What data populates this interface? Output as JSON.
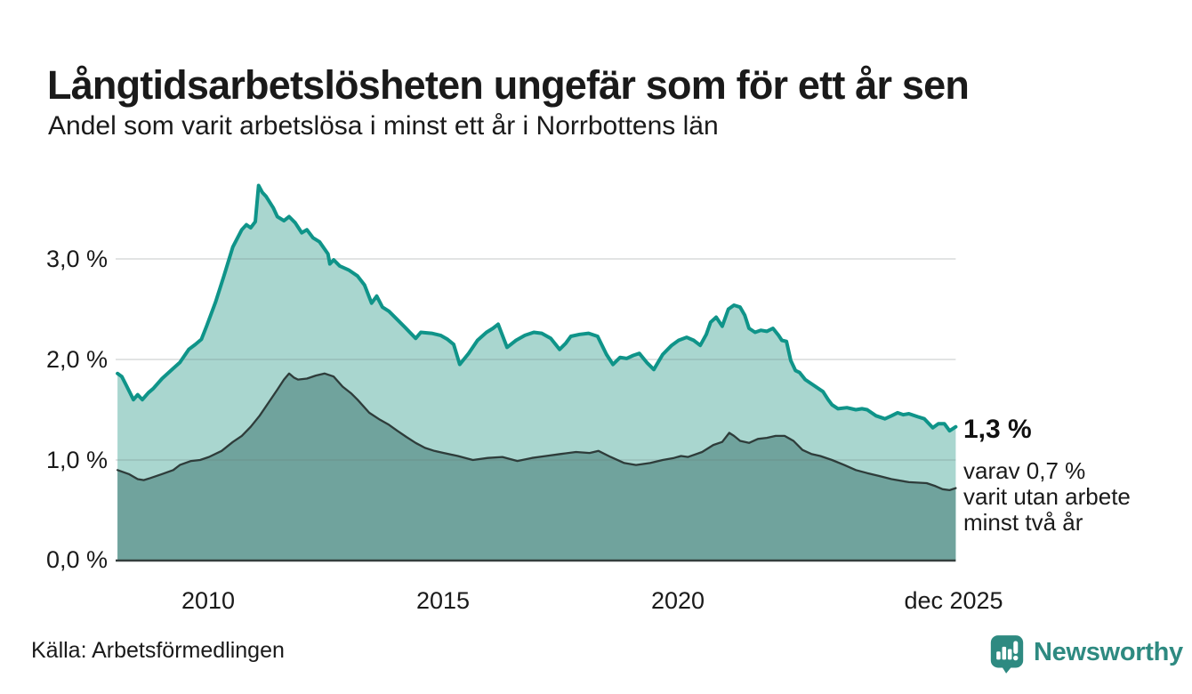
{
  "header": {
    "title": "Långtidsarbetslösheten ungefär som för ett år sen",
    "subtitle": "Andel som varit arbetslösa i minst ett år i Norrbottens län"
  },
  "chart_data": {
    "type": "area",
    "title": "Långtidsarbetslösheten ungefär som för ett år sen",
    "subtitle": "Andel som varit arbetslösa i minst ett år i Norrbottens län",
    "unit": "%",
    "x_axis": {
      "range_years": [
        2008,
        2025.92
      ],
      "ticks": [
        {
          "label": "2010",
          "year": 2010
        },
        {
          "label": "2015",
          "year": 2015
        },
        {
          "label": "2020",
          "year": 2020
        },
        {
          "label": "dec 2025",
          "year": 2025.92
        }
      ]
    },
    "y_axis": {
      "ylim": [
        0,
        3.85
      ],
      "gridline_values": [
        1,
        2,
        3
      ],
      "ticks": [
        {
          "label": "0,0 %",
          "value": 0
        },
        {
          "label": "1,0 %",
          "value": 1
        },
        {
          "label": "2,0 %",
          "value": 2
        },
        {
          "label": "3,0 %",
          "value": 3
        }
      ]
    },
    "colors": {
      "line_one_year": "#0f9489",
      "fill_one_year": "#a9d6cf",
      "line_two_years": "#2e3c3a",
      "fill_two_years": "#70a39d",
      "gridline": "rgba(104,115,114,0.25)",
      "baseline": "#343e3d"
    },
    "series": [
      {
        "name": "Arbetslösa minst ett år",
        "last_value_label": "1,3 %",
        "points": [
          [
            2008.04,
            1.86
          ],
          [
            2008.13,
            1.83
          ],
          [
            2008.23,
            1.74
          ],
          [
            2008.38,
            1.6
          ],
          [
            2008.47,
            1.65
          ],
          [
            2008.57,
            1.6
          ],
          [
            2008.7,
            1.67
          ],
          [
            2008.8,
            1.71
          ],
          [
            2008.99,
            1.81
          ],
          [
            2009.18,
            1.89
          ],
          [
            2009.37,
            1.97
          ],
          [
            2009.56,
            2.1
          ],
          [
            2009.7,
            2.15
          ],
          [
            2009.83,
            2.2
          ],
          [
            2009.94,
            2.33
          ],
          [
            2010.13,
            2.57
          ],
          [
            2010.31,
            2.83
          ],
          [
            2010.5,
            3.12
          ],
          [
            2010.69,
            3.29
          ],
          [
            2010.79,
            3.34
          ],
          [
            2010.88,
            3.31
          ],
          [
            2010.98,
            3.37
          ],
          [
            2011.05,
            3.73
          ],
          [
            2011.13,
            3.66
          ],
          [
            2011.21,
            3.62
          ],
          [
            2011.36,
            3.51
          ],
          [
            2011.45,
            3.42
          ],
          [
            2011.59,
            3.38
          ],
          [
            2011.7,
            3.42
          ],
          [
            2011.83,
            3.36
          ],
          [
            2011.97,
            3.26
          ],
          [
            2012.08,
            3.29
          ],
          [
            2012.21,
            3.21
          ],
          [
            2012.35,
            3.17
          ],
          [
            2012.53,
            3.05
          ],
          [
            2012.57,
            2.95
          ],
          [
            2012.65,
            2.99
          ],
          [
            2012.78,
            2.93
          ],
          [
            2012.97,
            2.89
          ],
          [
            2013.16,
            2.83
          ],
          [
            2013.31,
            2.74
          ],
          [
            2013.46,
            2.56
          ],
          [
            2013.57,
            2.63
          ],
          [
            2013.69,
            2.52
          ],
          [
            2013.83,
            2.48
          ],
          [
            2013.98,
            2.41
          ],
          [
            2014.17,
            2.32
          ],
          [
            2014.4,
            2.21
          ],
          [
            2014.51,
            2.27
          ],
          [
            2014.74,
            2.26
          ],
          [
            2014.93,
            2.24
          ],
          [
            2015.08,
            2.2
          ],
          [
            2015.21,
            2.15
          ],
          [
            2015.34,
            1.95
          ],
          [
            2015.53,
            2.06
          ],
          [
            2015.72,
            2.19
          ],
          [
            2015.91,
            2.27
          ],
          [
            2016.05,
            2.31
          ],
          [
            2016.16,
            2.35
          ],
          [
            2016.35,
            2.12
          ],
          [
            2016.54,
            2.19
          ],
          [
            2016.73,
            2.24
          ],
          [
            2016.92,
            2.27
          ],
          [
            2017.09,
            2.26
          ],
          [
            2017.28,
            2.21
          ],
          [
            2017.47,
            2.1
          ],
          [
            2017.6,
            2.16
          ],
          [
            2017.71,
            2.23
          ],
          [
            2017.9,
            2.25
          ],
          [
            2018.09,
            2.26
          ],
          [
            2018.28,
            2.23
          ],
          [
            2018.47,
            2.05
          ],
          [
            2018.61,
            1.95
          ],
          [
            2018.76,
            2.02
          ],
          [
            2018.9,
            2.01
          ],
          [
            2019.04,
            2.04
          ],
          [
            2019.17,
            2.06
          ],
          [
            2019.33,
            1.97
          ],
          [
            2019.48,
            1.9
          ],
          [
            2019.67,
            2.05
          ],
          [
            2019.86,
            2.14
          ],
          [
            2020.01,
            2.19
          ],
          [
            2020.18,
            2.22
          ],
          [
            2020.33,
            2.19
          ],
          [
            2020.47,
            2.14
          ],
          [
            2020.6,
            2.25
          ],
          [
            2020.69,
            2.37
          ],
          [
            2020.81,
            2.42
          ],
          [
            2020.94,
            2.33
          ],
          [
            2021.07,
            2.5
          ],
          [
            2021.19,
            2.54
          ],
          [
            2021.32,
            2.52
          ],
          [
            2021.42,
            2.44
          ],
          [
            2021.51,
            2.31
          ],
          [
            2021.64,
            2.27
          ],
          [
            2021.76,
            2.29
          ],
          [
            2021.89,
            2.28
          ],
          [
            2022.02,
            2.31
          ],
          [
            2022.14,
            2.24
          ],
          [
            2022.21,
            2.19
          ],
          [
            2022.31,
            2.18
          ],
          [
            2022.4,
            1.99
          ],
          [
            2022.5,
            1.89
          ],
          [
            2022.59,
            1.87
          ],
          [
            2022.71,
            1.8
          ],
          [
            2022.9,
            1.74
          ],
          [
            2023.09,
            1.68
          ],
          [
            2023.2,
            1.6
          ],
          [
            2023.28,
            1.55
          ],
          [
            2023.41,
            1.51
          ],
          [
            2023.6,
            1.52
          ],
          [
            2023.79,
            1.5
          ],
          [
            2023.92,
            1.51
          ],
          [
            2024.03,
            1.5
          ],
          [
            2024.22,
            1.44
          ],
          [
            2024.41,
            1.41
          ],
          [
            2024.55,
            1.44
          ],
          [
            2024.68,
            1.47
          ],
          [
            2024.8,
            1.45
          ],
          [
            2024.92,
            1.46
          ],
          [
            2025.11,
            1.43
          ],
          [
            2025.25,
            1.41
          ],
          [
            2025.43,
            1.32
          ],
          [
            2025.55,
            1.36
          ],
          [
            2025.68,
            1.36
          ],
          [
            2025.79,
            1.29
          ],
          [
            2025.92,
            1.33
          ]
        ]
      },
      {
        "name": "Arbetslösa minst två år",
        "last_value_label": "0,7 %",
        "points": [
          [
            2008.04,
            0.9
          ],
          [
            2008.28,
            0.86
          ],
          [
            2008.47,
            0.81
          ],
          [
            2008.6,
            0.8
          ],
          [
            2008.74,
            0.82
          ],
          [
            2008.99,
            0.86
          ],
          [
            2009.23,
            0.9
          ],
          [
            2009.37,
            0.95
          ],
          [
            2009.61,
            0.99
          ],
          [
            2009.8,
            1.0
          ],
          [
            2009.99,
            1.03
          ],
          [
            2010.26,
            1.09
          ],
          [
            2010.5,
            1.18
          ],
          [
            2010.69,
            1.24
          ],
          [
            2010.88,
            1.33
          ],
          [
            2011.07,
            1.44
          ],
          [
            2011.26,
            1.57
          ],
          [
            2011.45,
            1.7
          ],
          [
            2011.59,
            1.8
          ],
          [
            2011.7,
            1.86
          ],
          [
            2011.8,
            1.82
          ],
          [
            2011.89,
            1.8
          ],
          [
            2012.08,
            1.81
          ],
          [
            2012.27,
            1.84
          ],
          [
            2012.46,
            1.86
          ],
          [
            2012.65,
            1.83
          ],
          [
            2012.84,
            1.73
          ],
          [
            2013.03,
            1.66
          ],
          [
            2013.16,
            1.6
          ],
          [
            2013.41,
            1.47
          ],
          [
            2013.64,
            1.4
          ],
          [
            2013.83,
            1.35
          ],
          [
            2014.01,
            1.29
          ],
          [
            2014.2,
            1.23
          ],
          [
            2014.4,
            1.17
          ],
          [
            2014.6,
            1.12
          ],
          [
            2014.8,
            1.09
          ],
          [
            2015.0,
            1.07
          ],
          [
            2015.3,
            1.04
          ],
          [
            2015.62,
            1.0
          ],
          [
            2015.94,
            1.02
          ],
          [
            2016.25,
            1.03
          ],
          [
            2016.57,
            0.99
          ],
          [
            2016.88,
            1.02
          ],
          [
            2017.18,
            1.04
          ],
          [
            2017.5,
            1.06
          ],
          [
            2017.82,
            1.08
          ],
          [
            2018.11,
            1.07
          ],
          [
            2018.3,
            1.09
          ],
          [
            2018.56,
            1.03
          ],
          [
            2018.85,
            0.97
          ],
          [
            2019.1,
            0.95
          ],
          [
            2019.4,
            0.97
          ],
          [
            2019.67,
            1.0
          ],
          [
            2019.91,
            1.02
          ],
          [
            2020.06,
            1.04
          ],
          [
            2020.21,
            1.03
          ],
          [
            2020.51,
            1.08
          ],
          [
            2020.75,
            1.15
          ],
          [
            2020.94,
            1.18
          ],
          [
            2021.09,
            1.27
          ],
          [
            2021.19,
            1.24
          ],
          [
            2021.32,
            1.19
          ],
          [
            2021.51,
            1.17
          ],
          [
            2021.7,
            1.21
          ],
          [
            2021.89,
            1.22
          ],
          [
            2022.08,
            1.24
          ],
          [
            2022.27,
            1.24
          ],
          [
            2022.46,
            1.19
          ],
          [
            2022.65,
            1.1
          ],
          [
            2022.84,
            1.06
          ],
          [
            2023.03,
            1.04
          ],
          [
            2023.28,
            1.0
          ],
          [
            2023.54,
            0.95
          ],
          [
            2023.79,
            0.9
          ],
          [
            2024.03,
            0.87
          ],
          [
            2024.3,
            0.84
          ],
          [
            2024.55,
            0.81
          ],
          [
            2024.92,
            0.78
          ],
          [
            2025.3,
            0.77
          ],
          [
            2025.49,
            0.74
          ],
          [
            2025.64,
            0.71
          ],
          [
            2025.79,
            0.7
          ],
          [
            2025.92,
            0.72
          ]
        ]
      }
    ],
    "annotations": {
      "primary": "1,3 %",
      "secondary_lines": [
        "varav 0,7 %",
        "varit utan arbete",
        "minst två år"
      ]
    },
    "legend_position": "none",
    "grid": "horizontal"
  },
  "footer": {
    "source": "Källa: Arbetsförmedlingen",
    "logo_text": "Newsworthy"
  }
}
